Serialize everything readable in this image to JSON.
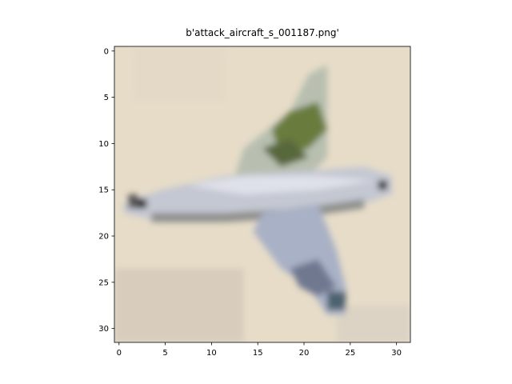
{
  "chart_data": {
    "type": "image",
    "title": "b'attack_aircraft_s_001187.png'",
    "xlim": [
      -0.5,
      31.5
    ],
    "ylim": [
      31.5,
      -0.5
    ],
    "xticks": [
      0,
      5,
      10,
      15,
      20,
      25,
      30
    ],
    "yticks": [
      0,
      5,
      10,
      15,
      20,
      25,
      30
    ]
  }
}
